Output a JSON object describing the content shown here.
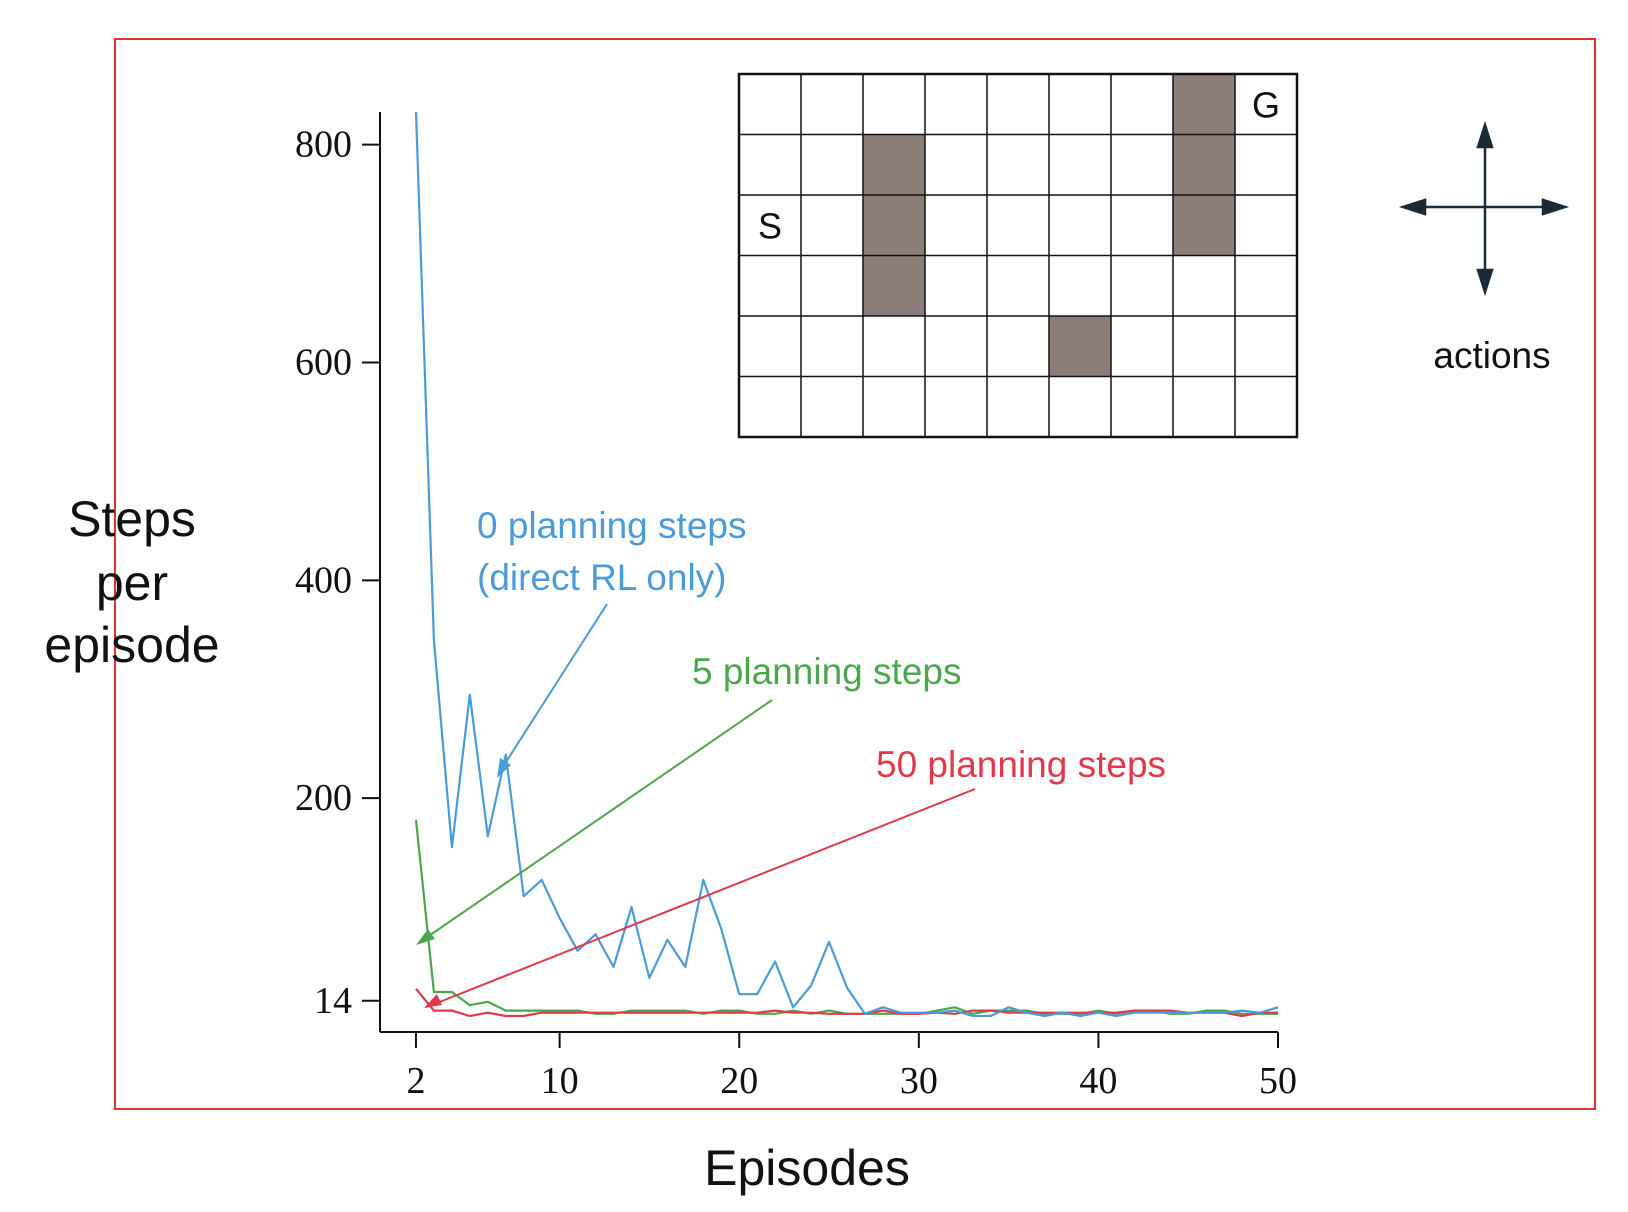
{
  "chart_data": {
    "type": "line",
    "xlabel": "Episodes",
    "ylabel_lines": [
      "Steps",
      "per",
      "episode"
    ],
    "xticks": [
      2,
      10,
      20,
      30,
      40,
      50
    ],
    "yticks": [
      14,
      200,
      400,
      600,
      800
    ],
    "xlim": [
      1,
      50
    ],
    "ylim": [
      0,
      830
    ],
    "series": [
      {
        "name": "0 planning steps\n(direct RL only)",
        "label_lines": [
          "0 planning steps",
          "(direct RL only)"
        ],
        "color": "#4a9bd8",
        "x": [
          2,
          3,
          4,
          5,
          6,
          7,
          8,
          9,
          10,
          11,
          12,
          13,
          14,
          15,
          16,
          17,
          18,
          19,
          20,
          21,
          22,
          23,
          24,
          25,
          26,
          27,
          28,
          29,
          30,
          31,
          32,
          33,
          34,
          35,
          36,
          37,
          38,
          39,
          40,
          41,
          42,
          43,
          44,
          45,
          46,
          47,
          48,
          49,
          50
        ],
        "y": [
          830,
          345,
          155,
          295,
          165,
          240,
          110,
          125,
          90,
          60,
          75,
          45,
          100,
          35,
          70,
          45,
          125,
          80,
          20,
          20,
          50,
          8,
          28,
          68,
          26,
          2,
          8,
          3,
          3,
          3,
          5,
          0,
          0,
          8,
          3,
          0,
          3,
          0,
          3,
          0,
          3,
          3,
          3,
          3,
          3,
          3,
          5,
          3,
          8
        ]
      },
      {
        "name": "5 planning steps",
        "label_lines": [
          "5 planning steps"
        ],
        "color": "#4da64d",
        "x": [
          2,
          3,
          4,
          5,
          6,
          7,
          8,
          9,
          10,
          11,
          12,
          13,
          14,
          15,
          16,
          17,
          18,
          19,
          20,
          21,
          22,
          23,
          24,
          25,
          26,
          27,
          28,
          29,
          30,
          31,
          32,
          33,
          34,
          35,
          36,
          37,
          38,
          39,
          40,
          41,
          42,
          43,
          44,
          45,
          46,
          47,
          48,
          49,
          50
        ],
        "y": [
          180,
          22,
          22,
          10,
          13,
          5,
          5,
          5,
          5,
          5,
          2,
          2,
          5,
          5,
          5,
          5,
          2,
          5,
          5,
          2,
          2,
          5,
          2,
          5,
          2,
          2,
          2,
          2,
          2,
          5,
          8,
          2,
          5,
          5,
          5,
          2,
          2,
          2,
          5,
          2,
          5,
          5,
          2,
          2,
          5,
          5,
          2,
          2,
          2
        ]
      },
      {
        "name": "50 planning steps",
        "label_lines": [
          "50 planning steps"
        ],
        "color": "#e0394a",
        "x": [
          2,
          3,
          4,
          5,
          6,
          7,
          8,
          9,
          10,
          11,
          12,
          13,
          14,
          15,
          16,
          17,
          18,
          19,
          20,
          21,
          22,
          23,
          24,
          25,
          26,
          27,
          28,
          29,
          30,
          31,
          32,
          33,
          34,
          35,
          36,
          37,
          38,
          39,
          40,
          41,
          42,
          43,
          44,
          45,
          46,
          47,
          48,
          49,
          50
        ],
        "y": [
          25,
          5,
          5,
          0,
          3,
          0,
          0,
          3,
          3,
          3,
          3,
          3,
          3,
          3,
          3,
          3,
          3,
          3,
          3,
          3,
          5,
          3,
          3,
          2,
          2,
          2,
          5,
          2,
          2,
          3,
          2,
          5,
          5,
          3,
          3,
          3,
          3,
          3,
          3,
          3,
          5,
          5,
          5,
          3,
          3,
          3,
          0,
          3,
          3
        ]
      }
    ]
  },
  "gridworld": {
    "rows": 6,
    "cols": 9,
    "start_label": "S",
    "goal_label": "G",
    "start_cell": [
      2,
      0
    ],
    "goal_cell": [
      0,
      8
    ],
    "wall_cells": [
      [
        1,
        2
      ],
      [
        2,
        2
      ],
      [
        3,
        2
      ],
      [
        0,
        7
      ],
      [
        1,
        7
      ],
      [
        2,
        7
      ],
      [
        4,
        5
      ]
    ],
    "wall_color": "#8b7e78"
  },
  "actions_label": "actions"
}
